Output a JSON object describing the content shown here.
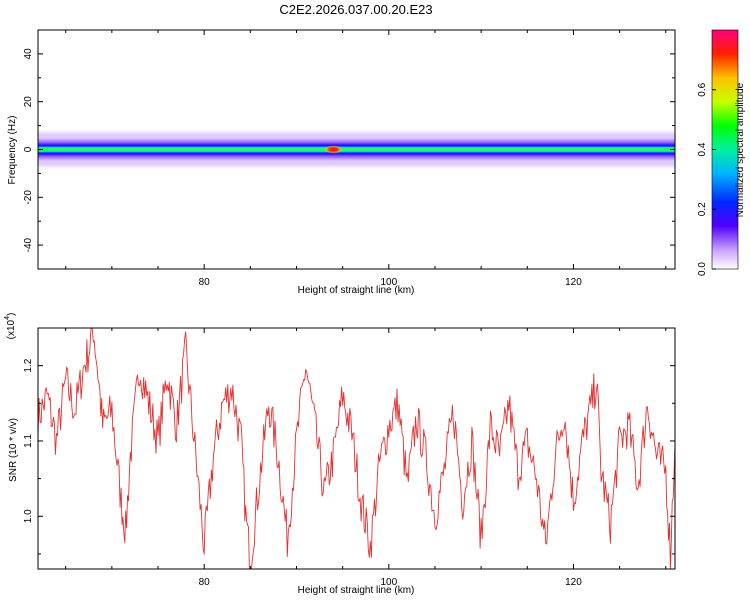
{
  "page_title": "C2E2.2026.037.00.20.E23",
  "colors": {
    "snr_line": "#e53030",
    "axis": "#000000"
  },
  "chart_data": [
    {
      "type": "heatmap",
      "title": "C2E2.2026.037.00.20.E23",
      "xlabel": "Height of straight line (km)",
      "ylabel": "Frequency (Hz)",
      "xlim": [
        62,
        131
      ],
      "ylim": [
        -50,
        50
      ],
      "x_ticks": [
        80,
        100,
        120
      ],
      "y_ticks": [
        40,
        20,
        0,
        -20,
        -40
      ],
      "band_center_hz": 0,
      "band_halfwidth_hz": [
        3,
        6,
        9
      ],
      "hot_spot": {
        "x": 94,
        "y": 0,
        "amplitude": 0.78
      },
      "colorbar": {
        "label": "Normalized spectral amplitude",
        "range": [
          0,
          0.8
        ],
        "ticks": [
          "0.0",
          "0.2",
          "0.4",
          "0.6"
        ],
        "ticks_values": [
          0,
          0.2,
          0.4,
          0.6
        ]
      }
    },
    {
      "type": "line",
      "xlabel": "Height of straight line (km)",
      "ylabel": "SNR (10 * v/v)",
      "scale_label": "(x10",
      "scale_exponent": "4",
      "xlim": [
        62,
        131
      ],
      "ylim": [
        0.93,
        1.25
      ],
      "x_ticks": [
        80,
        100,
        120
      ],
      "y_ticks": [
        1.2,
        1.1,
        1.0
      ],
      "y_tick_labels": [
        "1.2",
        "1.1",
        "1.0"
      ],
      "series": [
        {
          "name": "SNR",
          "points": [
            [
              62,
              1.13
            ],
            [
              63,
              1.16
            ],
            [
              64,
              1.1
            ],
            [
              65,
              1.18
            ],
            [
              66,
              1.14
            ],
            [
              67,
              1.2
            ],
            [
              67.5,
              1.22
            ],
            [
              68,
              1.25
            ],
            [
              68.5,
              1.19
            ],
            [
              69,
              1.12
            ],
            [
              70,
              1.14
            ],
            [
              71,
              1.02
            ],
            [
              71.5,
              0.98
            ],
            [
              72,
              1.08
            ],
            [
              73,
              1.2
            ],
            [
              74,
              1.15
            ],
            [
              75,
              1.1
            ],
            [
              76,
              1.19
            ],
            [
              77,
              1.12
            ],
            [
              78,
              1.22
            ],
            [
              79,
              1.09
            ],
            [
              80,
              0.96
            ],
            [
              81,
              1.08
            ],
            [
              82,
              1.15
            ],
            [
              83,
              1.17
            ],
            [
              84,
              1.1
            ],
            [
              84.5,
              1.0
            ],
            [
              85,
              0.94
            ],
            [
              86,
              1.05
            ],
            [
              87,
              1.15
            ],
            [
              88,
              1.08
            ],
            [
              89,
              0.97
            ],
            [
              90,
              1.1
            ],
            [
              91,
              1.2
            ],
            [
              92,
              1.12
            ],
            [
              93,
              1.03
            ],
            [
              94,
              1.08
            ],
            [
              95,
              1.16
            ],
            [
              96,
              1.11
            ],
            [
              97,
              1.02
            ],
            [
              98,
              0.96
            ],
            [
              99,
              1.07
            ],
            [
              100,
              1.12
            ],
            [
              101,
              1.15
            ],
            [
              102,
              1.04
            ],
            [
              103,
              1.13
            ],
            [
              104,
              1.08
            ],
            [
              105,
              1.0
            ],
            [
              106,
              1.06
            ],
            [
              107,
              1.14
            ],
            [
              108,
              1.02
            ],
            [
              109,
              1.1
            ],
            [
              110,
              0.97
            ],
            [
              111,
              1.12
            ],
            [
              112,
              1.08
            ],
            [
              113,
              1.15
            ],
            [
              114,
              1.06
            ],
            [
              115,
              1.1
            ],
            [
              116,
              1.05
            ],
            [
              117,
              0.96
            ],
            [
              118,
              1.08
            ],
            [
              119,
              1.14
            ],
            [
              120,
              1.02
            ],
            [
              121,
              1.1
            ],
            [
              122,
              1.15
            ],
            [
              122.5,
              1.18
            ],
            [
              123,
              1.06
            ],
            [
              124,
              0.99
            ],
            [
              125,
              1.1
            ],
            [
              126,
              1.12
            ],
            [
              127,
              1.04
            ],
            [
              128,
              1.15
            ],
            [
              129,
              1.08
            ],
            [
              130,
              1.06
            ],
            [
              130.5,
              0.95
            ],
            [
              131,
              1.1
            ]
          ]
        }
      ]
    }
  ]
}
